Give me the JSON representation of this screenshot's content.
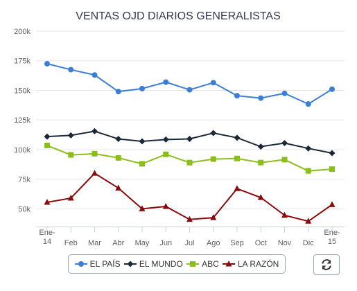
{
  "chart_data": {
    "type": "line",
    "title": "VENTAS OJD DIARIOS GENERALISTAS",
    "categories": [
      [
        "Ene-",
        "14"
      ],
      [
        "Feb"
      ],
      [
        "Mar"
      ],
      [
        "Abr"
      ],
      [
        "May"
      ],
      [
        "Jun"
      ],
      [
        "Jul"
      ],
      [
        "Ago"
      ],
      [
        "Sep"
      ],
      [
        "Oct"
      ],
      [
        "Nov"
      ],
      [
        "Dic"
      ],
      [
        "Ene-",
        "15"
      ]
    ],
    "ylim": [
      35000,
      200000
    ],
    "yticks": [
      50000,
      75000,
      100000,
      125000,
      150000,
      175000,
      200000
    ],
    "ytick_labels": [
      "50k",
      "75k",
      "100k",
      "125k",
      "150k",
      "175k",
      "200k"
    ],
    "grid": true,
    "legend_position": "bottom-center",
    "series": [
      {
        "name": "EL PAÍS",
        "color": "#3a7fd5",
        "marker": "circle",
        "values": [
          172500,
          167500,
          163000,
          149000,
          151500,
          157000,
          150500,
          156500,
          145500,
          143500,
          147500,
          138500,
          151000
        ]
      },
      {
        "name": "EL MUNDO",
        "color": "#1b2838",
        "marker": "diamond",
        "values": [
          111000,
          112000,
          115500,
          109000,
          107000,
          108500,
          109000,
          114000,
          110000,
          102500,
          105500,
          101000,
          97000
        ]
      },
      {
        "name": "ABC",
        "color": "#8cbe1a",
        "marker": "square",
        "values": [
          103500,
          95500,
          96500,
          93000,
          88000,
          96000,
          89000,
          92000,
          92500,
          89000,
          91500,
          82000,
          83500
        ]
      },
      {
        "name": "LA RAZÓN",
        "color": "#8b0a0a",
        "marker": "triangle",
        "values": [
          55500,
          59000,
          80000,
          67500,
          50000,
          52000,
          41000,
          42500,
          67000,
          59500,
          44500,
          39500,
          53500
        ]
      }
    ]
  },
  "toolbar": {
    "refresh_icon": "refresh-icon"
  }
}
